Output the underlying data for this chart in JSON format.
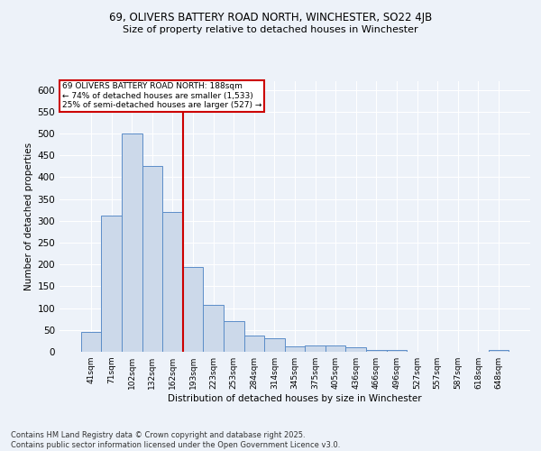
{
  "title_line1": "69, OLIVERS BATTERY ROAD NORTH, WINCHESTER, SO22 4JB",
  "title_line2": "Size of property relative to detached houses in Winchester",
  "xlabel": "Distribution of detached houses by size in Winchester",
  "ylabel": "Number of detached properties",
  "categories": [
    "41sqm",
    "71sqm",
    "102sqm",
    "132sqm",
    "162sqm",
    "193sqm",
    "223sqm",
    "253sqm",
    "284sqm",
    "314sqm",
    "345sqm",
    "375sqm",
    "405sqm",
    "436sqm",
    "466sqm",
    "496sqm",
    "527sqm",
    "557sqm",
    "587sqm",
    "618sqm",
    "648sqm"
  ],
  "values": [
    45,
    312,
    500,
    425,
    320,
    195,
    107,
    70,
    37,
    32,
    12,
    14,
    14,
    10,
    5,
    4,
    1,
    1,
    1,
    1,
    5
  ],
  "bar_color": "#ccd9ea",
  "bar_edge_color": "#5b8dc8",
  "reference_line_color": "#cc0000",
  "annotation_text": "69 OLIVERS BATTERY ROAD NORTH: 188sqm\n← 74% of detached houses are smaller (1,533)\n25% of semi-detached houses are larger (527) →",
  "annotation_box_color": "#ffffff",
  "annotation_box_edge_color": "#cc0000",
  "ylim": [
    0,
    620
  ],
  "yticks": [
    0,
    50,
    100,
    150,
    200,
    250,
    300,
    350,
    400,
    450,
    500,
    550,
    600
  ],
  "footer_text": "Contains HM Land Registry data © Crown copyright and database right 2025.\nContains public sector information licensed under the Open Government Licence v3.0.",
  "bg_color": "#edf2f9",
  "plot_bg_color": "#edf2f9"
}
